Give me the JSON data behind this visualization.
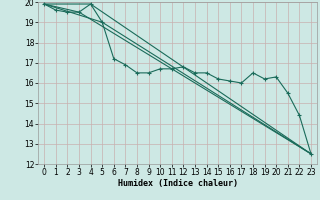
{
  "title": "",
  "xlabel": "Humidex (Indice chaleur)",
  "ylabel": "",
  "bg_color": "#cde8e4",
  "grid_major_color": "#c8b8b8",
  "grid_minor_color": "#ddd0d0",
  "line_color": "#1a6b5a",
  "xlim": [
    -0.5,
    23.5
  ],
  "ylim": [
    12,
    20
  ],
  "yticks": [
    12,
    13,
    14,
    15,
    16,
    17,
    18,
    19,
    20
  ],
  "xticks": [
    0,
    1,
    2,
    3,
    4,
    5,
    6,
    7,
    8,
    9,
    10,
    11,
    12,
    13,
    14,
    15,
    16,
    17,
    18,
    19,
    20,
    21,
    22,
    23
  ],
  "series_main": {
    "x": [
      0,
      1,
      2,
      3,
      4,
      5,
      6,
      7,
      8,
      9,
      10,
      11,
      12,
      13,
      14,
      15,
      16,
      17,
      18,
      19,
      20,
      21,
      22,
      23
    ],
    "y": [
      19.9,
      19.6,
      19.5,
      19.5,
      19.9,
      19.0,
      17.2,
      16.9,
      16.5,
      16.5,
      16.7,
      16.7,
      16.8,
      16.5,
      16.5,
      16.2,
      16.1,
      16.0,
      16.5,
      16.2,
      16.3,
      15.5,
      14.4,
      12.5
    ]
  },
  "series_lines": [
    {
      "x": [
        0,
        4,
        23
      ],
      "y": [
        19.9,
        19.9,
        12.5
      ]
    },
    {
      "x": [
        0,
        5,
        23
      ],
      "y": [
        19.9,
        19.0,
        12.5
      ]
    },
    {
      "x": [
        0,
        3,
        23
      ],
      "y": [
        19.9,
        19.5,
        12.5
      ]
    }
  ],
  "xlabel_fontsize": 6,
  "tick_fontsize": 5.5
}
